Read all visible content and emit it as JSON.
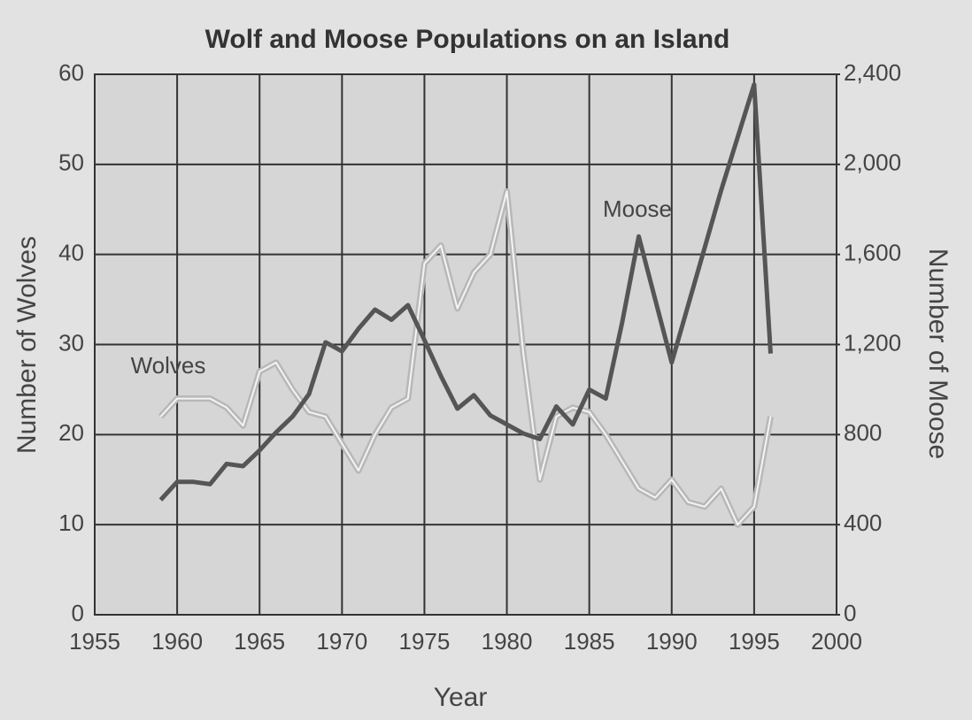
{
  "chart_data": {
    "type": "line",
    "title": "Wolf and Moose Populations on an Island",
    "xlabel": "Year",
    "ylabel": "Number of Wolves",
    "y2label": "Number of Moose",
    "x": [
      1959,
      1960,
      1961,
      1962,
      1963,
      1964,
      1965,
      1966,
      1967,
      1968,
      1969,
      1970,
      1971,
      1972,
      1973,
      1974,
      1975,
      1976,
      1977,
      1978,
      1979,
      1980,
      1981,
      1982,
      1983,
      1984,
      1985,
      1986,
      1987,
      1988,
      1989,
      1990,
      1991,
      1992,
      1993,
      1994,
      1995,
      1996
    ],
    "series": [
      {
        "name": "Wolves",
        "color": "#b8b8b8",
        "axis": "y",
        "values": [
          22,
          24,
          24,
          24,
          23,
          21,
          27,
          28,
          25,
          22.5,
          22,
          19,
          16,
          20,
          23,
          24,
          39,
          41,
          34,
          38,
          40,
          47,
          29,
          15,
          22,
          23,
          22.5,
          20,
          17,
          14,
          13,
          15,
          12.5,
          12,
          14,
          10,
          12,
          22
        ]
      },
      {
        "name": "Moose",
        "color": "#555555",
        "axis": "y2",
        "values": [
          510,
          590,
          590,
          580,
          670,
          660,
          730,
          810,
          880,
          980,
          1210,
          1170,
          1270,
          1355,
          1310,
          1375,
          1220,
          1060,
          915,
          975,
          885,
          845,
          805,
          780,
          925,
          845,
          1000,
          960,
          1300,
          1680,
          1400,
          1120,
          1375,
          1630,
          1885,
          2120,
          2355,
          1160
        ]
      }
    ],
    "xlim": [
      1955,
      2000
    ],
    "xticks": [
      1955,
      1960,
      1965,
      1970,
      1975,
      1980,
      1985,
      1990,
      1995,
      2000
    ],
    "ylim": [
      0,
      60
    ],
    "yticks": [
      0,
      10,
      20,
      30,
      40,
      50,
      60
    ],
    "y2lim": [
      0,
      2400
    ],
    "y2ticks": [
      0,
      400,
      800,
      {
        "value": 1200,
        "label": "1,200"
      },
      {
        "value": 1600,
        "label": "1,600"
      },
      {
        "value": 2000,
        "label": "2,000"
      },
      {
        "value": 2400,
        "label": "2,400"
      }
    ],
    "grid": true
  }
}
